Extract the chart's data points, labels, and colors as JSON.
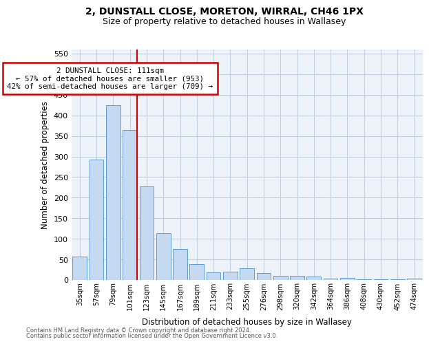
{
  "title1": "2, DUNSTALL CLOSE, MORETON, WIRRAL, CH46 1PX",
  "title2": "Size of property relative to detached houses in Wallasey",
  "xlabel": "Distribution of detached houses by size in Wallasey",
  "ylabel": "Number of detached properties",
  "footnote1": "Contains HM Land Registry data © Crown copyright and database right 2024.",
  "footnote2": "Contains public sector information licensed under the Open Government Licence v3.0.",
  "bar_labels": [
    "35sqm",
    "57sqm",
    "79sqm",
    "101sqm",
    "123sqm",
    "145sqm",
    "167sqm",
    "189sqm",
    "211sqm",
    "233sqm",
    "255sqm",
    "276sqm",
    "298sqm",
    "320sqm",
    "342sqm",
    "364sqm",
    "386sqm",
    "408sqm",
    "430sqm",
    "452sqm",
    "474sqm"
  ],
  "bar_values": [
    57,
    293,
    425,
    365,
    228,
    113,
    76,
    38,
    18,
    20,
    29,
    17,
    10,
    10,
    8,
    4,
    5,
    2,
    1,
    1,
    4
  ],
  "bar_color": "#c5d9f0",
  "bar_edge_color": "#5b9bd5",
  "vline_color": "#cc0000",
  "annotation_text": "2 DUNSTALL CLOSE: 111sqm\n← 57% of detached houses are smaller (953)\n42% of semi-detached houses are larger (709) →",
  "annotation_box_color": "#cc0000",
  "annotation_fill": "white",
  "ylim": [
    0,
    560
  ],
  "yticks": [
    0,
    50,
    100,
    150,
    200,
    250,
    300,
    350,
    400,
    450,
    500,
    550
  ],
  "grid_color": "#c0cfe0",
  "bg_color": "#eef3fa"
}
